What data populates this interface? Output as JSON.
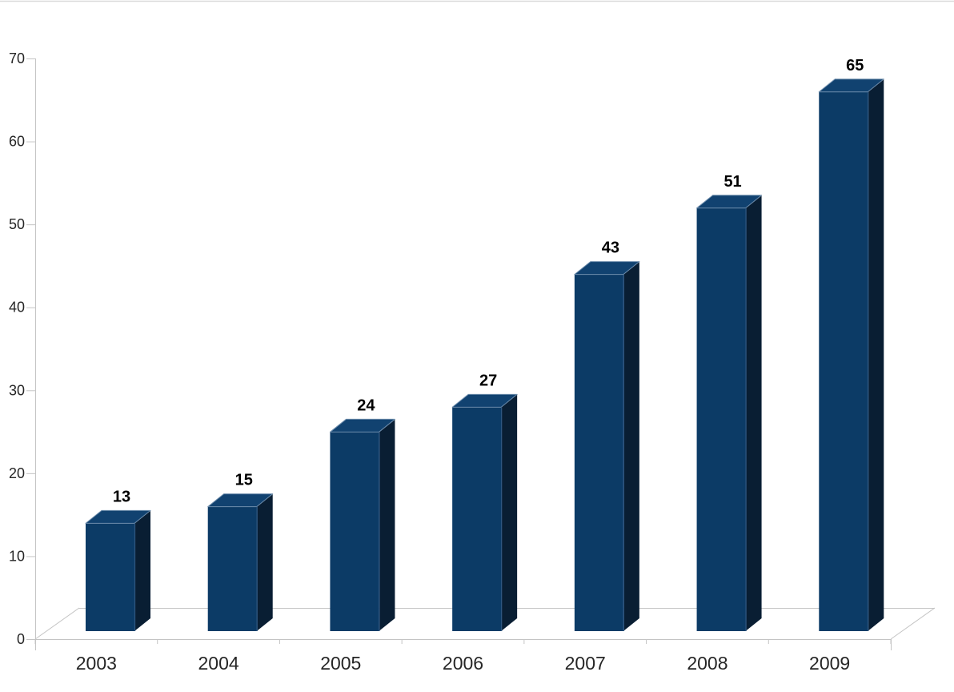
{
  "chart_data": {
    "type": "bar",
    "variant": "3d-column",
    "title": "",
    "xlabel": "",
    "ylabel": "",
    "categories": [
      "2003",
      "2004",
      "2005",
      "2006",
      "2007",
      "2008",
      "2009"
    ],
    "values": [
      13,
      15,
      24,
      27,
      43,
      51,
      65
    ],
    "data_labels": [
      "13",
      "15",
      "24",
      "27",
      "43",
      "51",
      "65"
    ],
    "ylim": [
      0,
      70
    ],
    "ytick_step": 10,
    "yticks": [
      "0",
      "10",
      "20",
      "30",
      "40",
      "50",
      "60",
      "70"
    ],
    "grid": false,
    "legend": false,
    "colors": {
      "bar_front": "#0C3B66",
      "bar_side": "#091E33",
      "bar_top": "#114270",
      "bar_edge_highlight": "#6E8DAC",
      "bar_front_side_edge": "#2E5680",
      "axis_line": "#C4C4C4",
      "tick_label_text": "#262626",
      "value_label_text": "#000000",
      "background": "#FFFFFF",
      "top_border": "#D9D9D9"
    }
  }
}
